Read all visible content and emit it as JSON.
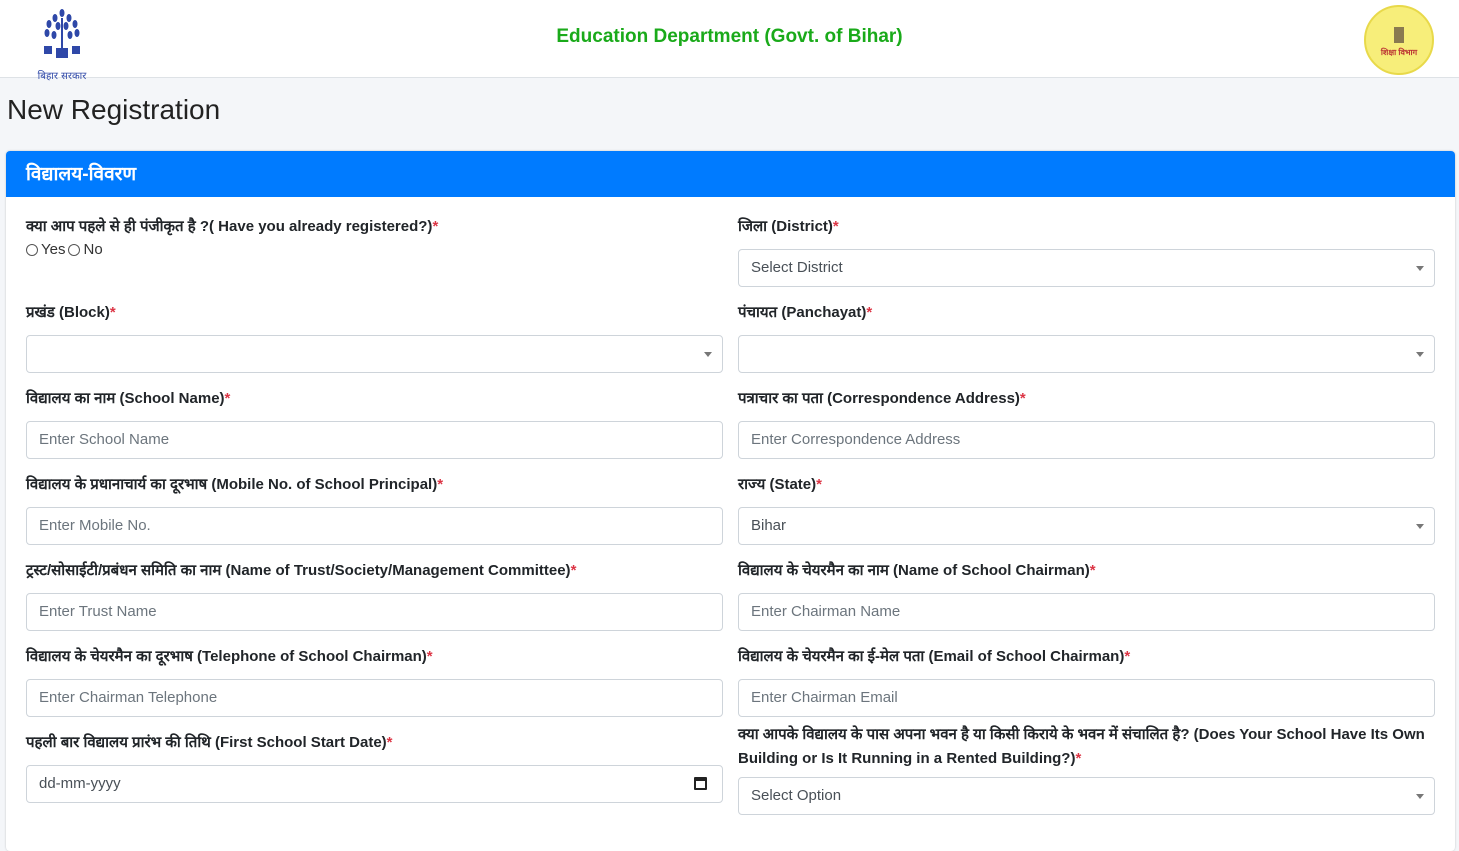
{
  "header": {
    "logo_left_caption": "बिहार सरकार",
    "title": "Education Department (Govt. of Bihar)",
    "logo_right_text": "शिक्षा विभाग"
  },
  "page_title": "New Registration",
  "section_title": "विद्यालय-विवरण",
  "fields": {
    "registered": {
      "label": "क्या आप पहले से ही पंजीकृत है ?( Have you already registered?)",
      "options": [
        "Yes",
        "No"
      ]
    },
    "district": {
      "label": "जिला (District)",
      "value": "Select District"
    },
    "block": {
      "label": "प्रखंड (Block)",
      "value": ""
    },
    "panchayat": {
      "label": "पंचायत (Panchayat)",
      "value": ""
    },
    "school_name": {
      "label": "विद्यालय का नाम (School Name)",
      "placeholder": "Enter School Name"
    },
    "address": {
      "label": "पत्राचार का पता (Correspondence Address)",
      "placeholder": "Enter Correspondence Address"
    },
    "mobile": {
      "label": "विद्यालय के प्रधानाचार्य का दूरभाष (Mobile No. of School Principal)",
      "placeholder": "Enter Mobile No."
    },
    "state": {
      "label": "राज्य (State)",
      "value": "Bihar"
    },
    "trust": {
      "label": "ट्रस्ट/सोसाईटी/प्रबंधन समिति का नाम (Name of Trust/Society/Management Committee)",
      "placeholder": "Enter Trust Name"
    },
    "chairman": {
      "label": "विद्यालय के चेयरमैन का नाम (Name of School Chairman)",
      "placeholder": "Enter Chairman Name"
    },
    "chair_tel": {
      "label": "विद्यालय के चेयरमैन का दूरभाष (Telephone of School Chairman)",
      "placeholder": "Enter Chairman Telephone"
    },
    "chair_email": {
      "label": "विद्यालय के चेयरमैन का ई-मेल पता (Email of School Chairman)",
      "placeholder": "Enter Chairman Email"
    },
    "start_date": {
      "label": "पहली बार विद्यालय प्रारंभ की तिथि (First School Start Date)",
      "placeholder": "dd-mm-yyyy"
    },
    "building": {
      "label": "क्या आपके विद्यालय के पास अपना भवन है या किसी किराये के भवन में संचालित है? (Does Your School Have Its Own Building or Is It Running in a Rented Building?)",
      "value": "Select Option"
    }
  },
  "required_mark": "*",
  "colors": {
    "primary": "#007bff",
    "title_green": "#1aaa1a",
    "required": "#dc3545"
  }
}
